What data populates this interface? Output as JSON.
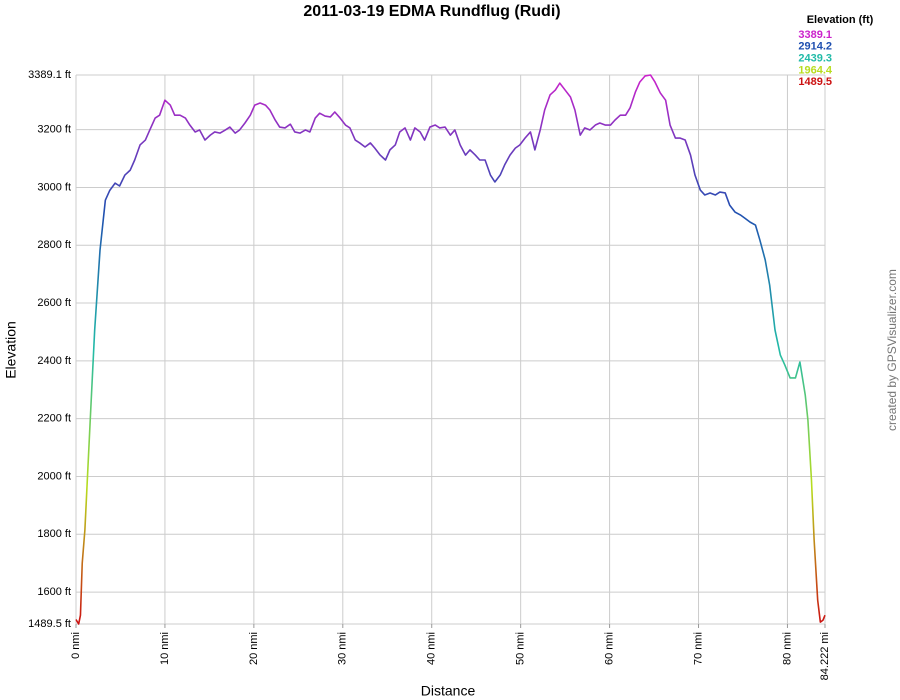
{
  "chart_data": {
    "type": "line",
    "title": "2011-03-19 EDMA Rundflug (Rudi)",
    "x_label": "Distance",
    "y_label": "Elevation",
    "credit": "created by GPSVisualizer.com",
    "colorscale": {
      "title": "Elevation (ft)",
      "stops": [
        {
          "value": 3389.1,
          "color": "#cc22cc"
        },
        {
          "value": 2914.2,
          "color": "#1f4fb0"
        },
        {
          "value": 2439.3,
          "color": "#22bba8"
        },
        {
          "value": 1964.4,
          "color": "#b8dd1e"
        },
        {
          "value": 1489.5,
          "color": "#cc1111"
        }
      ]
    },
    "x": [
      0,
      0.3,
      0.5,
      0.7,
      1.0,
      1.6,
      2.1,
      2.7,
      3.3,
      3.8,
      4.4,
      4.9,
      5.5,
      6.1,
      6.6,
      7.2,
      7.8,
      8.3,
      8.9,
      9.4,
      10.0,
      10.6,
      11.1,
      11.7,
      12.3,
      12.8,
      13.4,
      13.9,
      14.5,
      15.1,
      15.6,
      16.2,
      16.8,
      17.3,
      17.9,
      18.4,
      19.0,
      19.6,
      20.1,
      20.7,
      21.3,
      21.8,
      22.4,
      22.9,
      23.5,
      24.1,
      24.6,
      25.2,
      25.8,
      26.3,
      26.9,
      27.4,
      28.0,
      28.6,
      29.1,
      29.7,
      30.3,
      30.8,
      31.4,
      31.9,
      32.5,
      33.1,
      33.6,
      34.2,
      34.8,
      35.3,
      35.9,
      36.4,
      37.0,
      37.6,
      38.1,
      38.7,
      39.2,
      39.8,
      40.4,
      40.9,
      41.5,
      42.1,
      42.6,
      43.2,
      43.8,
      44.3,
      44.9,
      45.4,
      46.0,
      46.6,
      47.1,
      47.7,
      48.2,
      48.8,
      49.4,
      49.9,
      50.5,
      51.1,
      51.6,
      52.2,
      52.7,
      53.3,
      53.9,
      54.4,
      55.0,
      55.6,
      56.1,
      56.7,
      57.2,
      57.8,
      58.4,
      58.9,
      59.5,
      60.1,
      60.6,
      61.2,
      61.8,
      62.3,
      62.9,
      63.4,
      64.0,
      64.6,
      65.1,
      65.7,
      66.3,
      66.8,
      67.4,
      67.9,
      68.5,
      69.1,
      69.6,
      70.2,
      70.7,
      71.3,
      71.9,
      72.4,
      73.0,
      73.5,
      74.1,
      74.7,
      75.2,
      75.8,
      76.4,
      76.9,
      77.5,
      78.0,
      78.6,
      79.2,
      79.7,
      80.3,
      80.9,
      81.4,
      82.0,
      82.3,
      82.7,
      83.0,
      83.4,
      83.7,
      84.0,
      84.222
    ],
    "values": [
      1505,
      1489.5,
      1520,
      1700,
      1815,
      2195,
      2507,
      2783,
      2956,
      2990,
      3015,
      3005,
      3043,
      3060,
      3095,
      3147,
      3164,
      3199,
      3240,
      3250,
      3302,
      3285,
      3250,
      3250,
      3240,
      3216,
      3192,
      3199,
      3164,
      3181,
      3192,
      3188,
      3199,
      3209,
      3188,
      3199,
      3223,
      3250,
      3285,
      3292,
      3285,
      3268,
      3233,
      3209,
      3206,
      3219,
      3192,
      3188,
      3199,
      3192,
      3240,
      3257,
      3247,
      3244,
      3261,
      3240,
      3216,
      3206,
      3164,
      3154,
      3140,
      3154,
      3136,
      3112,
      3095,
      3130,
      3147,
      3192,
      3206,
      3164,
      3206,
      3192,
      3164,
      3209,
      3216,
      3206,
      3209,
      3181,
      3199,
      3147,
      3112,
      3130,
      3112,
      3095,
      3095,
      3043,
      3019,
      3043,
      3078,
      3112,
      3136,
      3147,
      3171,
      3192,
      3130,
      3199,
      3268,
      3320,
      3337,
      3361,
      3337,
      3313,
      3268,
      3181,
      3206,
      3199,
      3216,
      3223,
      3216,
      3216,
      3233,
      3250,
      3250,
      3275,
      3330,
      3365,
      3386,
      3389.1,
      3365,
      3327,
      3302,
      3216,
      3171,
      3171,
      3164,
      3112,
      3043,
      2991,
      2974,
      2981,
      2974,
      2984,
      2981,
      2939,
      2915,
      2905,
      2894,
      2880,
      2870,
      2818,
      2749,
      2662,
      2507,
      2420,
      2386,
      2341,
      2341,
      2396,
      2282,
      2195,
      1988,
      1780,
      1572,
      1496,
      1503,
      1520
    ],
    "xlim": [
      0,
      84.222
    ],
    "ylim": [
      1489.5,
      3389.1
    ],
    "xticks": [
      {
        "value": 0,
        "label": "0 nmi"
      },
      {
        "value": 10,
        "label": "10 nmi"
      },
      {
        "value": 20,
        "label": "20 nmi"
      },
      {
        "value": 30,
        "label": "30 nmi"
      },
      {
        "value": 40,
        "label": "40 nmi"
      },
      {
        "value": 50,
        "label": "50 nmi"
      },
      {
        "value": 60,
        "label": "60 nmi"
      },
      {
        "value": 70,
        "label": "70 nmi"
      },
      {
        "value": 80,
        "label": "80 nmi"
      },
      {
        "value": 84.222,
        "label": "84.222 mi"
      }
    ],
    "yticks": [
      {
        "value": 1489.5,
        "label": "1489.5 ft"
      },
      {
        "value": 1600,
        "label": "1600 ft"
      },
      {
        "value": 1800,
        "label": "1800 ft"
      },
      {
        "value": 2000,
        "label": "2000 ft"
      },
      {
        "value": 2200,
        "label": "2200 ft"
      },
      {
        "value": 2400,
        "label": "2400 ft"
      },
      {
        "value": 2600,
        "label": "2600 ft"
      },
      {
        "value": 2800,
        "label": "2800 ft"
      },
      {
        "value": 3000,
        "label": "3000 ft"
      },
      {
        "value": 3200,
        "label": "3200 ft"
      },
      {
        "value": 3389.1,
        "label": "3389.1 ft"
      }
    ],
    "grid": true
  }
}
